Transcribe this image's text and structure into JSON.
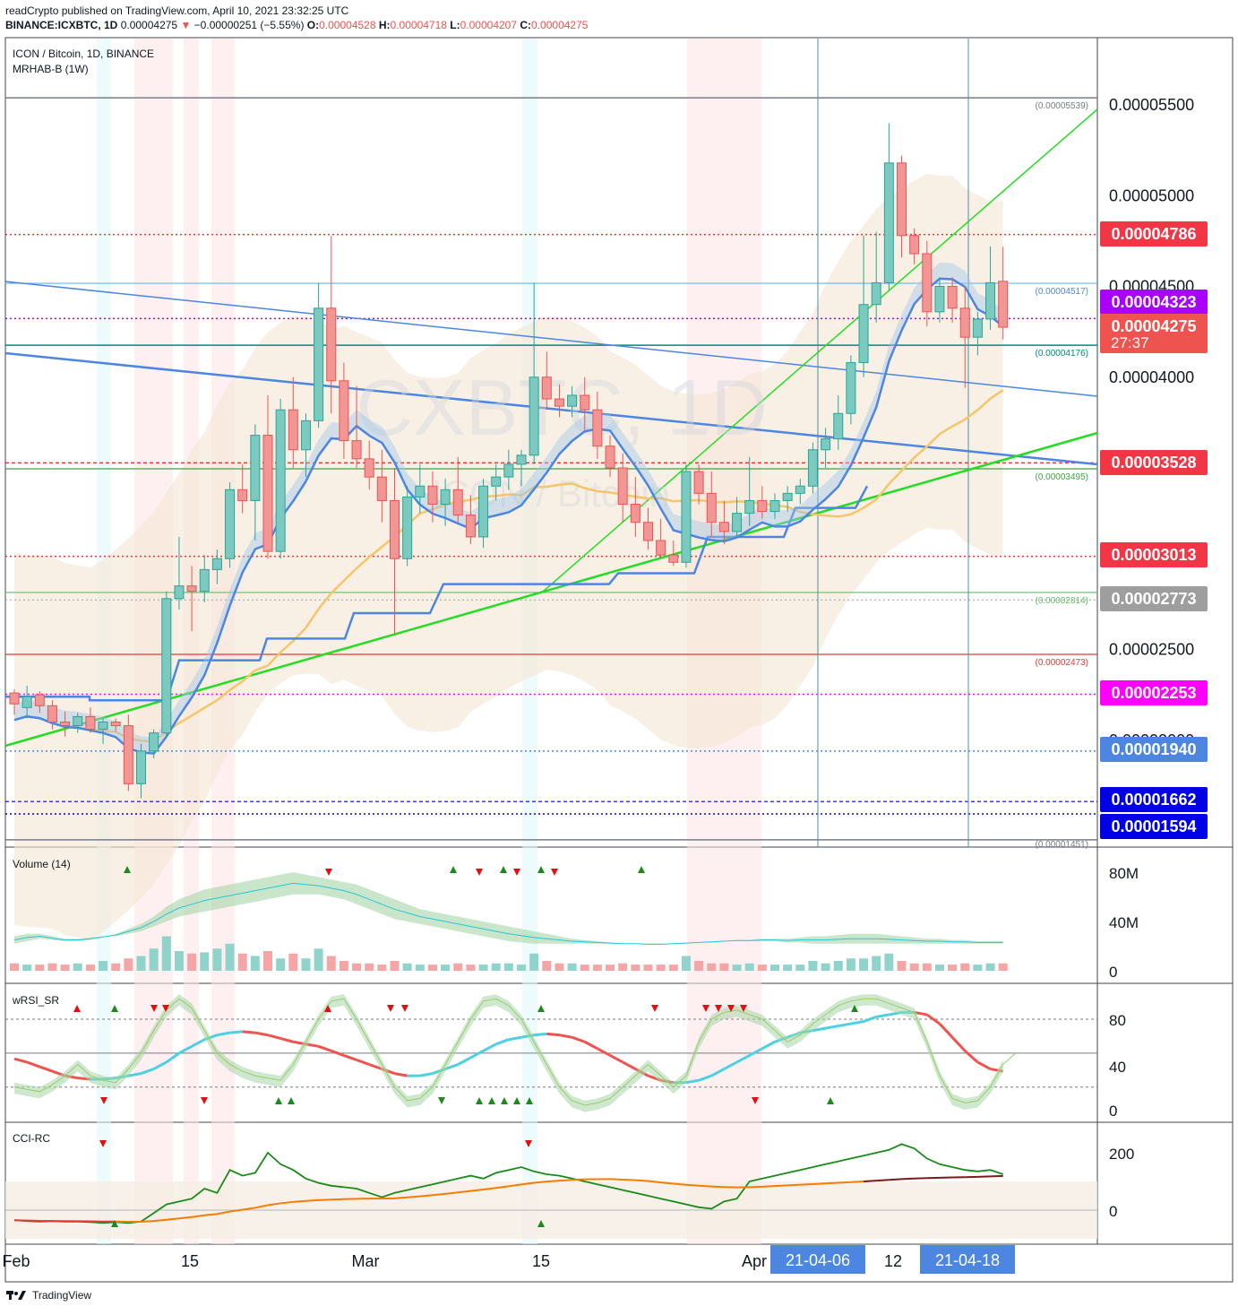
{
  "header": {
    "line1": "readCrypto published on TradingView.com, April 10, 2021 23:32:25 UTC",
    "symbol": "BINANCE:ICXBTC, 1D",
    "close": "0.00004275",
    "change": "−0.00000251 (−5.55%)",
    "o_label": "O:",
    "o_value": "0.00004528",
    "h_label": "H:",
    "h_value": "0.00004718",
    "l_label": "L:",
    "l_value": "0.00004207",
    "c_label": "C:",
    "c_value": "0.00004275"
  },
  "main_pane": {
    "title": "ICON / Bitcoin, 1D, BINANCE",
    "indicator": "MRHAB-B (1W)",
    "watermark_big": "ICXBTC, 1D",
    "watermark_small": "ICON / Bitcoin"
  },
  "price_axis": {
    "ticks": [
      "0.00005500",
      "0.00005000",
      "0.00004500",
      "0.00004000",
      "0.00002500",
      "0.00002000"
    ],
    "badges": [
      {
        "text": "0.00004786",
        "color": "#f23645"
      },
      {
        "text": "0.00004323",
        "color": "#aa00ff"
      },
      {
        "text": "0.00004275",
        "color": "#ef5350",
        "sub": "27:37"
      },
      {
        "text": "0.00003528",
        "color": "#f23645"
      },
      {
        "text": "0.00003013",
        "color": "#f23645"
      },
      {
        "text": "0.00002773",
        "color": "#9e9e9e"
      },
      {
        "text": "0.00002253",
        "color": "#ff00ff"
      },
      {
        "text": "0.00001940",
        "color": "#4c86e0"
      },
      {
        "text": "0.00001662",
        "color": "#0000e6"
      },
      {
        "text": "0.00001594",
        "color": "#0000e6"
      }
    ]
  },
  "level_labels": [
    "(0.00005539)",
    "(0.00004517)",
    "(0.00004176)",
    "(0.00003495)",
    "(0.00002814)",
    "(0.00002473)",
    "(0.00001451)"
  ],
  "volume_pane": {
    "title": "Volume (14)",
    "ticks": [
      "80M",
      "40M",
      "0"
    ]
  },
  "rsi_pane": {
    "title": "wRSI_SR",
    "ticks": [
      "80",
      "40",
      "0"
    ]
  },
  "cci_pane": {
    "title": "CCI-RC",
    "ticks": [
      "200",
      "0"
    ]
  },
  "time_axis": {
    "labels": [
      "Feb",
      "15",
      "Mar",
      "15",
      "Apr",
      "12"
    ],
    "badges": [
      "21-04-06",
      "21-04-18"
    ]
  },
  "footer": {
    "brand": "TradingView"
  },
  "chart_data": {
    "type": "candlestick",
    "title": "ICON / Bitcoin, 1D, BINANCE",
    "candles_ohlc": [
      [
        2.26e-05,
        2.28e-05,
        2.14e-05,
        2.2e-05
      ],
      [
        2.18e-05,
        2.3e-05,
        2.12e-05,
        2.24e-05
      ],
      [
        2.25e-05,
        2.27e-05,
        2.15e-05,
        2.19e-05
      ],
      [
        2.19e-05,
        2.22e-05,
        2.06e-05,
        2.1e-05
      ],
      [
        2.1e-05,
        2.16e-05,
        2.02e-05,
        2.08e-05
      ],
      [
        2.08e-05,
        2.15e-05,
        2.04e-05,
        2.13e-05
      ],
      [
        2.13e-05,
        2.18e-05,
        2.04e-05,
        2.06e-05
      ],
      [
        2.06e-05,
        2.12e-05,
        1.98e-05,
        2.1e-05
      ],
      [
        2.1e-05,
        2.12e-05,
        2.05e-05,
        2.08e-05
      ],
      [
        2.08e-05,
        2.14e-05,
        1.72e-05,
        1.76e-05
      ],
      [
        1.76e-05,
        1.98e-05,
        1.68e-05,
        1.94e-05
      ],
      [
        1.94e-05,
        2.06e-05,
        1.9e-05,
        2.04e-05
      ],
      [
        2.04e-05,
        2.82e-05,
        2.02e-05,
        2.78e-05
      ],
      [
        2.78e-05,
        3.12e-05,
        2.72e-05,
        2.85e-05
      ],
      [
        2.85e-05,
        2.96e-05,
        2.6e-05,
        2.82e-05
      ],
      [
        2.82e-05,
        3.02e-05,
        2.76e-05,
        2.94e-05
      ],
      [
        2.94e-05,
        3.05e-05,
        2.86e-05,
        3e-05
      ],
      [
        3e-05,
        3.42e-05,
        2.95e-05,
        3.38e-05
      ],
      [
        3.38e-05,
        3.52e-05,
        3.25e-05,
        3.32e-05
      ],
      [
        3.32e-05,
        3.74e-05,
        3.1e-05,
        3.68e-05
      ],
      [
        3.68e-05,
        3.9e-05,
        3e-05,
        3.04e-05
      ],
      [
        3.04e-05,
        3.88e-05,
        3e-05,
        3.82e-05
      ],
      [
        3.82e-05,
        4e-05,
        3.5e-05,
        3.6e-05
      ],
      [
        3.6e-05,
        3.8e-05,
        3.45e-05,
        3.76e-05
      ],
      [
        3.76e-05,
        4.52e-05,
        3.72e-05,
        4.38e-05
      ],
      [
        4.38e-05,
        4.78e-05,
        3.8e-05,
        3.98e-05
      ],
      [
        3.98e-05,
        4.08e-05,
        3.55e-05,
        3.65e-05
      ],
      [
        3.65e-05,
        3.95e-05,
        3.5e-05,
        3.55e-05
      ],
      [
        3.55e-05,
        3.65e-05,
        3.38e-05,
        3.45e-05
      ],
      [
        3.45e-05,
        3.6e-05,
        3.2e-05,
        3.32e-05
      ],
      [
        3.32e-05,
        3.5e-05,
        2.58e-05,
        3e-05
      ],
      [
        3e-05,
        3.4e-05,
        2.96e-05,
        3.34e-05
      ],
      [
        3.34e-05,
        3.52e-05,
        3.25e-05,
        3.4e-05
      ],
      [
        3.4e-05,
        3.48e-05,
        3.2e-05,
        3.3e-05
      ],
      [
        3.3e-05,
        3.44e-05,
        3.18e-05,
        3.38e-05
      ],
      [
        3.38e-05,
        3.56e-05,
        3.2e-05,
        3.24e-05
      ],
      [
        3.24e-05,
        3.35e-05,
        3.08e-05,
        3.12e-05
      ],
      [
        3.12e-05,
        3.44e-05,
        3.06e-05,
        3.4e-05
      ],
      [
        3.4e-05,
        3.52e-05,
        3.32e-05,
        3.45e-05
      ],
      [
        3.45e-05,
        3.6e-05,
        3.38e-05,
        3.52e-05
      ],
      [
        3.52e-05,
        3.6e-05,
        3.4e-05,
        3.57e-05
      ],
      [
        3.57e-05,
        4.52e-05,
        3.52e-05,
        4e-05
      ],
      [
        4e-05,
        4.14e-05,
        3.82e-05,
        3.88e-05
      ],
      [
        3.88e-05,
        3.96e-05,
        3.78e-05,
        3.84e-05
      ],
      [
        3.84e-05,
        3.95e-05,
        3.78e-05,
        3.9e-05
      ],
      [
        3.9e-05,
        4e-05,
        3.7e-05,
        3.82e-05
      ],
      [
        3.82e-05,
        3.92e-05,
        3.55e-05,
        3.62e-05
      ],
      [
        3.62e-05,
        3.68e-05,
        3.45e-05,
        3.5e-05
      ],
      [
        3.5e-05,
        3.58e-05,
        3.2e-05,
        3.3e-05
      ],
      [
        3.3e-05,
        3.45e-05,
        3.12e-05,
        3.2e-05
      ],
      [
        3.2e-05,
        3.28e-05,
        3.05e-05,
        3.1e-05
      ],
      [
        3.1e-05,
        3.22e-05,
        3e-05,
        3.02e-05
      ],
      [
        3.02e-05,
        3.1e-05,
        2.96e-05,
        2.98e-05
      ],
      [
        2.98e-05,
        3.52e-05,
        2.95e-05,
        3.48e-05
      ],
      [
        3.48e-05,
        3.52e-05,
        3.3e-05,
        3.36e-05
      ],
      [
        3.36e-05,
        3.48e-05,
        3.12e-05,
        3.2e-05
      ],
      [
        3.2e-05,
        3.32e-05,
        3.08e-05,
        3.15e-05
      ],
      [
        3.15e-05,
        3.34e-05,
        3.12e-05,
        3.25e-05
      ],
      [
        3.25e-05,
        3.56e-05,
        3.18e-05,
        3.32e-05
      ],
      [
        3.32e-05,
        3.4e-05,
        3.22e-05,
        3.26e-05
      ],
      [
        3.26e-05,
        3.36e-05,
        3.22e-05,
        3.32e-05
      ],
      [
        3.32e-05,
        3.4e-05,
        3.26e-05,
        3.36e-05
      ],
      [
        3.36e-05,
        3.44e-05,
        3.3e-05,
        3.4e-05
      ],
      [
        3.4e-05,
        3.64e-05,
        3.36e-05,
        3.6e-05
      ],
      [
        3.6e-05,
        3.72e-05,
        3.5e-05,
        3.66e-05
      ],
      [
        3.66e-05,
        3.9e-05,
        3.6e-05,
        3.8e-05
      ],
      [
        3.8e-05,
        4.12e-05,
        3.74e-05,
        4.08e-05
      ],
      [
        4.08e-05,
        4.78e-05,
        4e-05,
        4.4e-05
      ],
      [
        4.4e-05,
        4.8e-05,
        4.3e-05,
        4.52e-05
      ],
      [
        4.52e-05,
        5.4e-05,
        4.48e-05,
        5.18e-05
      ],
      [
        5.18e-05,
        5.22e-05,
        4.66e-05,
        4.78e-05
      ],
      [
        4.78e-05,
        4.82e-05,
        4.62e-05,
        4.68e-05
      ],
      [
        4.68e-05,
        4.75e-05,
        4.28e-05,
        4.36e-05
      ],
      [
        4.36e-05,
        4.55e-05,
        4.3e-05,
        4.5e-05
      ],
      [
        4.5e-05,
        4.55e-05,
        4.3e-05,
        4.38e-05
      ],
      [
        4.38e-05,
        4.5e-05,
        3.94e-05,
        4.22e-05
      ],
      [
        4.22e-05,
        4.36e-05,
        4.12e-05,
        4.32e-05
      ],
      [
        4.32e-05,
        4.72e-05,
        4.26e-05,
        4.52e-05
      ],
      [
        4.528e-05,
        4.718e-05,
        4.207e-05,
        4.275e-05
      ]
    ],
    "ylim": [
      1.451e-05,
      5.8e-05
    ],
    "x_ticks": [
      "Feb",
      "15",
      "Mar",
      "15",
      "Apr",
      "12"
    ]
  }
}
